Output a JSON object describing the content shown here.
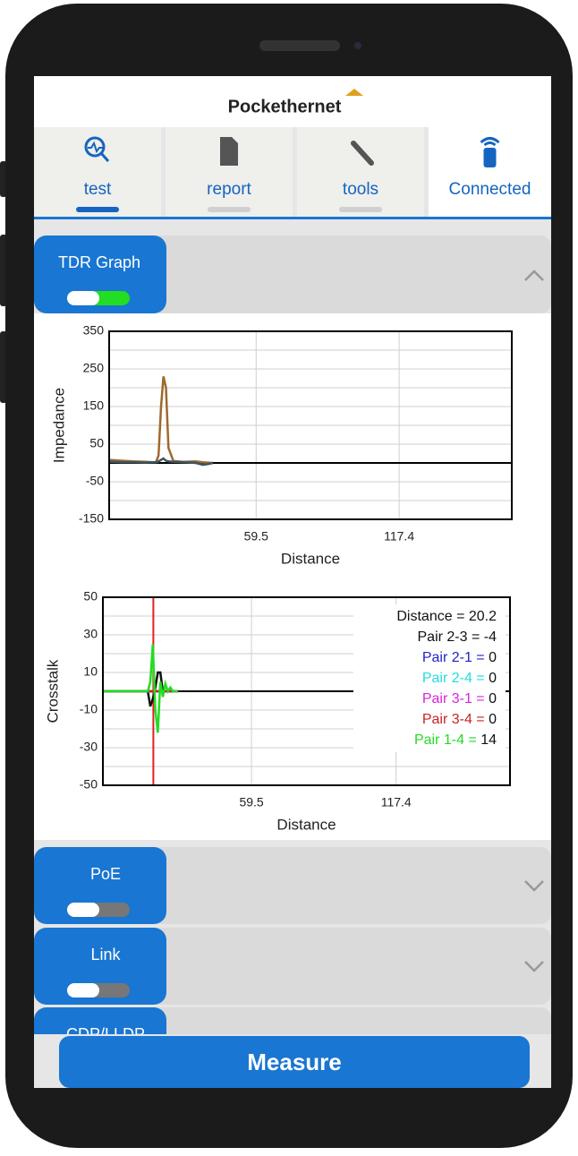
{
  "header": {
    "brand": "Pockethernet"
  },
  "tabs": [
    {
      "label": "test",
      "active": true
    },
    {
      "label": "report",
      "active": false
    },
    {
      "label": "tools",
      "active": false
    },
    {
      "label": "Connected",
      "active": false
    }
  ],
  "sections": [
    {
      "title": "TDR Graph",
      "enabled": true,
      "expanded": true
    },
    {
      "title": "PoE",
      "enabled": false,
      "expanded": false
    },
    {
      "title": "Link",
      "enabled": false,
      "expanded": false
    },
    {
      "title": "CDP/LLDP",
      "enabled": false,
      "expanded": false
    }
  ],
  "chart_data": [
    {
      "type": "line",
      "ylabel": "Impedance",
      "xlabel": "Distance",
      "xlim": [
        0,
        163
      ],
      "xticks": [
        59.5,
        117.4
      ],
      "ylim": [
        -150,
        350
      ],
      "yticks": [
        -150,
        -50,
        50,
        150,
        250,
        350
      ],
      "ygrid": [
        -100,
        0,
        100,
        200,
        300
      ],
      "x": [
        0,
        5,
        10,
        15,
        18,
        19,
        20,
        21,
        22,
        23,
        24,
        26,
        30,
        35,
        38,
        40,
        42
      ],
      "series": [
        {
          "color": "#a0682f",
          "values": [
            8,
            6,
            4,
            3,
            2,
            3,
            20,
            150,
            230,
            200,
            40,
            5,
            3,
            4,
            2,
            1,
            0
          ]
        },
        {
          "color": "#3b5560",
          "values": [
            3,
            2,
            2,
            1,
            2,
            2,
            4,
            8,
            12,
            6,
            4,
            3,
            2,
            0,
            -5,
            -3,
            0
          ]
        }
      ]
    },
    {
      "type": "line",
      "ylabel": "Crosstalk",
      "xlabel": "Distance",
      "xlim": [
        0,
        163
      ],
      "xticks": [
        59.5,
        117.4
      ],
      "ylim": [
        -50,
        50
      ],
      "yticks": [
        -50,
        -30,
        -10,
        10,
        30,
        50
      ],
      "ygrid": [
        -40,
        -20,
        0,
        20,
        40
      ],
      "marker": {
        "label": "Distance",
        "value": 20.2,
        "color": "#e02020"
      },
      "readout_separator": " = ",
      "x": [
        0,
        15,
        18,
        19,
        20,
        21,
        22,
        23,
        24,
        25,
        26,
        27,
        28,
        30
      ],
      "series": [
        {
          "name": "Pair 2-3",
          "color": "#111111",
          "readout": -4,
          "values": [
            0,
            0,
            0,
            -8,
            -4,
            2,
            10,
            10,
            0,
            0,
            0,
            0,
            0,
            0
          ]
        },
        {
          "name": "Pair 2-1",
          "color": "#2222cc",
          "readout": 0,
          "values": [
            0,
            0,
            0,
            0,
            0,
            0,
            0,
            0,
            0,
            0,
            0,
            0,
            0,
            0
          ]
        },
        {
          "name": "Pair 2-4",
          "color": "#22dddd",
          "readout": 0,
          "values": [
            0,
            0,
            0,
            0,
            0,
            0,
            0,
            0,
            0,
            0,
            0,
            0,
            0,
            0
          ]
        },
        {
          "name": "Pair 3-1",
          "color": "#dd22dd",
          "readout": 0,
          "values": [
            0,
            0,
            0,
            0,
            0,
            0,
            0,
            0,
            0,
            0,
            0,
            0,
            0,
            0
          ]
        },
        {
          "name": "Pair 3-4",
          "color": "#cc2222",
          "readout": 0,
          "values": [
            0,
            0,
            0,
            0,
            0,
            0,
            0,
            0,
            0,
            0,
            0,
            0,
            0,
            0
          ]
        },
        {
          "name": "Pair 1-4",
          "color": "#22dd22",
          "readout": 14,
          "values": [
            0,
            0,
            0,
            5,
            25,
            -10,
            -22,
            5,
            -3,
            4,
            0,
            2,
            0,
            0
          ]
        }
      ]
    }
  ],
  "button": {
    "label": "Measure"
  }
}
